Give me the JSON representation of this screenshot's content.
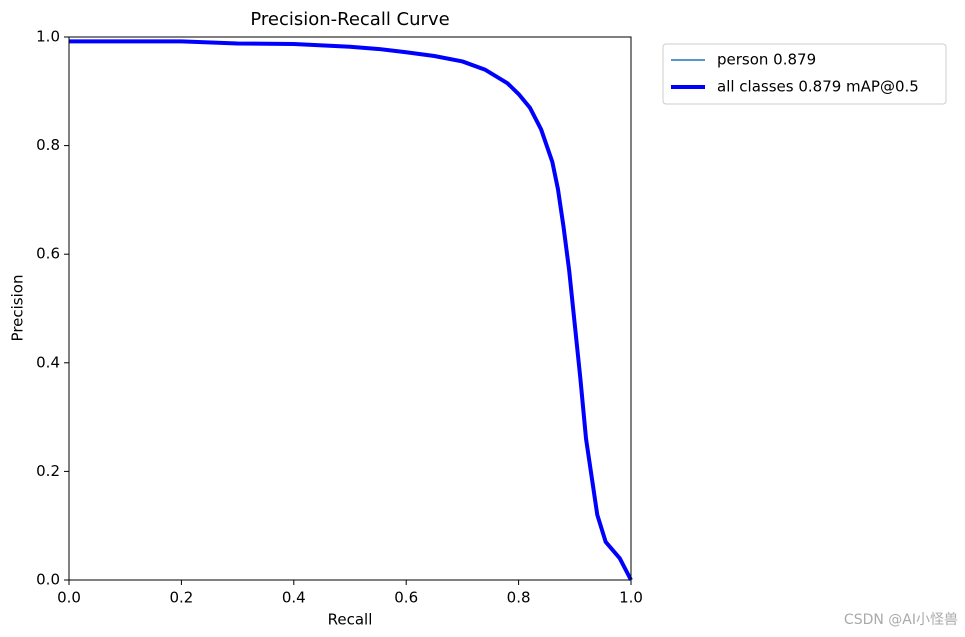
{
  "chart_data": {
    "type": "line",
    "title": "Precision-Recall Curve",
    "x_label": "Recall",
    "y_label": "Precision",
    "x": [
      0,
      0.2,
      0.3,
      0.4,
      0.5,
      0.55,
      0.6,
      0.65,
      0.7,
      0.74,
      0.78,
      0.8,
      0.82,
      0.84,
      0.86,
      0.87,
      0.88,
      0.89,
      0.9,
      0.91,
      0.92,
      0.93,
      0.94,
      0.955,
      0.98,
      1.0
    ],
    "series": [
      {
        "name": "person 0.879",
        "color": "#1f77b4",
        "values": [
          0.992,
          0.992,
          0.988,
          0.987,
          0.982,
          0.978,
          0.972,
          0.965,
          0.955,
          0.94,
          0.915,
          0.895,
          0.87,
          0.83,
          0.77,
          0.72,
          0.65,
          0.57,
          0.47,
          0.37,
          0.26,
          0.19,
          0.12,
          0.07,
          0.04,
          0.0
        ]
      },
      {
        "name": "all classes 0.879 mAP@0.5",
        "color": "#0000ff",
        "values": [
          0.992,
          0.992,
          0.988,
          0.987,
          0.982,
          0.978,
          0.972,
          0.965,
          0.955,
          0.94,
          0.915,
          0.895,
          0.87,
          0.83,
          0.77,
          0.72,
          0.65,
          0.57,
          0.47,
          0.37,
          0.26,
          0.19,
          0.12,
          0.07,
          0.04,
          0.0
        ]
      }
    ],
    "xlim": [
      0,
      1
    ],
    "ylim": [
      0,
      1
    ],
    "xticks": [
      {
        "value": 0,
        "label": "0.0"
      },
      0.2,
      0.4,
      0.6,
      0.8,
      {
        "value": 1,
        "label": "1.0"
      }
    ],
    "yticks": [
      {
        "value": 0,
        "label": "0.0"
      },
      0.2,
      0.4,
      0.6,
      0.8,
      {
        "value": 1,
        "label": "1.0"
      }
    ],
    "grid": false,
    "legend": "outside-right",
    "watermark": "CSDN @AI小怪兽"
  }
}
